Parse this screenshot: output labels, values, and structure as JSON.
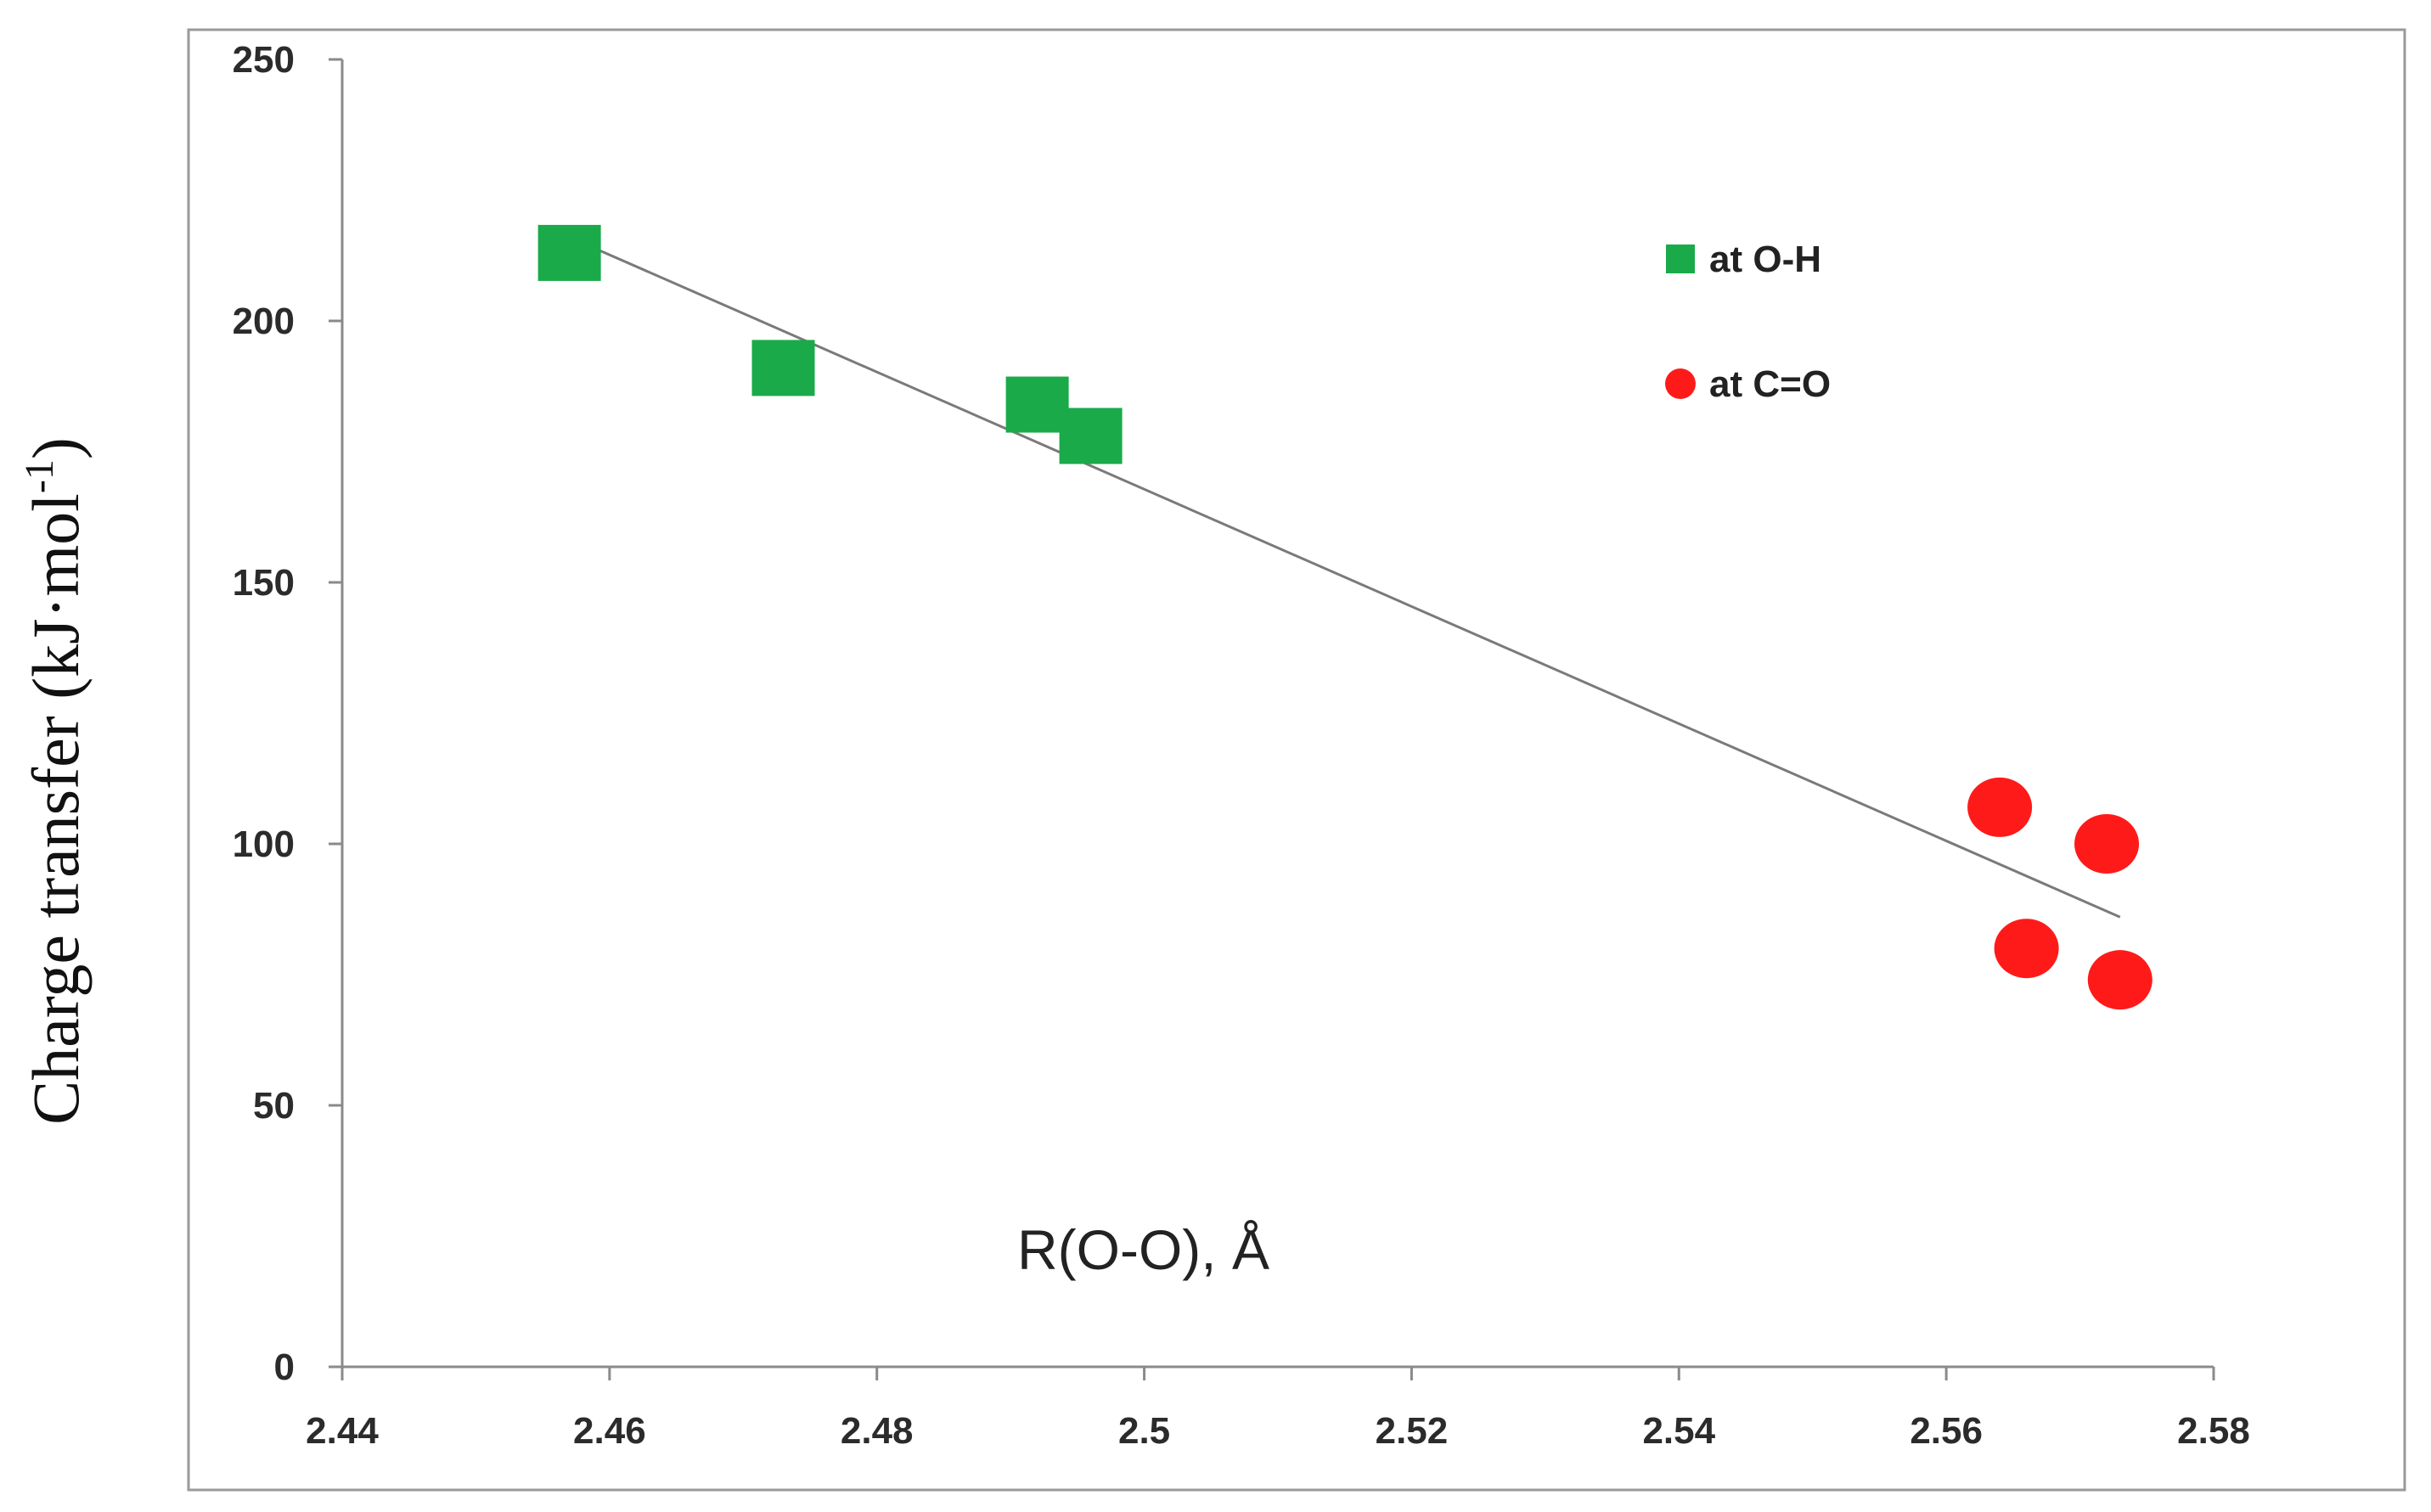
{
  "chart_data": {
    "type": "scatter",
    "title": "",
    "xlabel": "R(O-O), Å",
    "ylabel": "Charge transfer (kJ·mol",
    "ylabel_sup": "-1",
    "ylabel_close": ")",
    "xlim": [
      2.44,
      2.58
    ],
    "ylim": [
      0,
      250
    ],
    "x_ticks": [
      "2.44",
      "2.46",
      "2.48",
      "2.5",
      "2.52",
      "2.54",
      "2.56",
      "2.58"
    ],
    "y_ticks": [
      "0",
      "50",
      "100",
      "150",
      "200",
      "250"
    ],
    "grid": false,
    "legend_position": "top-right",
    "series": [
      {
        "name": "at O-H",
        "marker": "square",
        "color": "#1aaa4a",
        "points": [
          {
            "x": 2.457,
            "y": 213
          },
          {
            "x": 2.473,
            "y": 191
          },
          {
            "x": 2.492,
            "y": 184
          },
          {
            "x": 2.496,
            "y": 178
          }
        ]
      },
      {
        "name": "at C=O",
        "marker": "circle",
        "color": "#ff1a1a",
        "points": [
          {
            "x": 2.564,
            "y": 107
          },
          {
            "x": 2.572,
            "y": 100
          },
          {
            "x": 2.566,
            "y": 80
          },
          {
            "x": 2.573,
            "y": 74
          }
        ]
      }
    ],
    "trendline": {
      "color": "#7a7a7a",
      "from": {
        "x": 2.457,
        "y": 216
      },
      "to": {
        "x": 2.573,
        "y": 86
      }
    }
  }
}
